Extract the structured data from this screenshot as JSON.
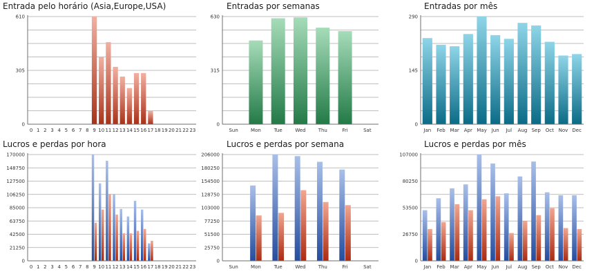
{
  "colors": {
    "grid": "#a8a8a8",
    "axis": "#6e6e6e",
    "hourly_bar": [
      "#f2b0a2",
      "#a8321a"
    ],
    "weekly_bar": [
      "#a6dcb9",
      "#237a47"
    ],
    "monthly_bar": [
      "#8fd5e8",
      "#0b6b86"
    ],
    "profit_bar": [
      "#a9bfe9",
      "#244d9e"
    ],
    "loss_bar": [
      "#f0a692",
      "#a92c12"
    ]
  },
  "chart_data": [
    {
      "id": "hourly_entries",
      "type": "bar",
      "title": "Entrada pelo horário (Asia,Europe,USA)",
      "xlabel": "",
      "ylabel": "",
      "categories": [
        "0",
        "1",
        "2",
        "3",
        "4",
        "5",
        "6",
        "7",
        "8",
        "9",
        "10",
        "11",
        "12",
        "13",
        "14",
        "15",
        "16",
        "17",
        "18",
        "19",
        "20",
        "21",
        "22",
        "23"
      ],
      "series": [
        {
          "values": [
            0,
            0,
            0,
            0,
            0,
            0,
            0,
            0,
            0,
            610,
            380,
            465,
            325,
            270,
            205,
            290,
            290,
            75,
            0,
            0,
            0,
            0,
            0,
            0
          ]
        }
      ],
      "ylim": [
        0,
        610
      ],
      "yticks": [
        "0",
        "305",
        "610"
      ],
      "grid": true,
      "legend": "none"
    },
    {
      "id": "weekly_entries",
      "type": "bar",
      "title": "Entradas por semanas",
      "xlabel": "",
      "ylabel": "",
      "categories": [
        "Sun",
        "Mon",
        "Tue",
        "Wed",
        "Thu",
        "Fri",
        "Sat"
      ],
      "series": [
        {
          "values": [
            0,
            490,
            620,
            625,
            565,
            545,
            0
          ]
        }
      ],
      "ylim": [
        0,
        630
      ],
      "yticks": [
        "0",
        "315",
        "630"
      ],
      "grid": true,
      "legend": "none"
    },
    {
      "id": "monthly_entries",
      "type": "bar",
      "title": "Entradas por mês",
      "xlabel": "",
      "ylabel": "",
      "categories": [
        "Jan",
        "Feb",
        "Mar",
        "Apr",
        "May",
        "Jun",
        "Jul",
        "Aug",
        "Sep",
        "Oct",
        "Nov",
        "Dec"
      ],
      "series": [
        {
          "values": [
            232,
            214,
            210,
            243,
            290,
            240,
            230,
            273,
            266,
            222,
            185,
            189
          ]
        }
      ],
      "ylim": [
        0,
        290
      ],
      "yticks": [
        "0",
        "145",
        "290"
      ],
      "grid": true,
      "legend": "none"
    },
    {
      "id": "hourly_pnl",
      "type": "bar",
      "title": "Lucros e perdas por hora",
      "xlabel": "",
      "ylabel": "",
      "categories": [
        "0",
        "1",
        "2",
        "3",
        "4",
        "5",
        "6",
        "7",
        "8",
        "9",
        "10",
        "11",
        "12",
        "13",
        "14",
        "15",
        "16",
        "17",
        "18",
        "19",
        "20",
        "21",
        "22",
        "23"
      ],
      "series": [
        {
          "values": [
            0,
            0,
            0,
            0,
            0,
            0,
            0,
            0,
            0,
            170000,
            124000,
            160000,
            107000,
            83000,
            71000,
            96000,
            82000,
            28000,
            0,
            0,
            0,
            0,
            0,
            0
          ]
        },
        {
          "values": [
            0,
            0,
            0,
            0,
            0,
            0,
            0,
            0,
            0,
            61000,
            82000,
            107000,
            74000,
            44000,
            44000,
            48000,
            51000,
            32000,
            0,
            0,
            0,
            0,
            0,
            0
          ]
        }
      ],
      "ylim": [
        0,
        170000
      ],
      "yticks": [
        "0",
        "21250",
        "42500",
        "63750",
        "85000",
        "106250",
        "127500",
        "148750",
        "170000"
      ],
      "grid": true,
      "legend": "none"
    },
    {
      "id": "weekly_pnl",
      "type": "bar",
      "title": "Lucros e perdas por semana",
      "xlabel": "",
      "ylabel": "",
      "categories": [
        "Sun",
        "Mon",
        "Tue",
        "Wed",
        "Thu",
        "Fri",
        "Sat"
      ],
      "series": [
        {
          "values": [
            0,
            146000,
            206000,
            203000,
            192000,
            177000,
            0
          ]
        },
        {
          "values": [
            0,
            88000,
            93000,
            137000,
            114000,
            108000,
            0
          ]
        }
      ],
      "ylim": [
        0,
        206000
      ],
      "yticks": [
        "0",
        "25750",
        "51500",
        "77250",
        "103000",
        "128750",
        "154500",
        "180250",
        "206000"
      ],
      "grid": true,
      "legend": "none"
    },
    {
      "id": "monthly_pnl",
      "type": "bar",
      "title": "Lucros e perdas por mês",
      "xlabel": "",
      "ylabel": "",
      "categories": [
        "Jan",
        "Feb",
        "Mar",
        "Apr",
        "May",
        "Jun",
        "Jul",
        "Aug",
        "Sep",
        "Oct",
        "Nov",
        "Dec"
      ],
      "series": [
        {
          "values": [
            51000,
            63000,
            73000,
            77000,
            107000,
            98000,
            68000,
            85000,
            100000,
            69000,
            66000,
            66000
          ]
        },
        {
          "values": [
            32000,
            39000,
            57000,
            51000,
            62000,
            65000,
            28000,
            40000,
            46000,
            53000,
            33000,
            32000
          ]
        }
      ],
      "ylim": [
        0,
        107000
      ],
      "yticks": [
        "0",
        "26750",
        "53500",
        "80250",
        "107000"
      ],
      "grid": true,
      "legend": "none"
    }
  ]
}
